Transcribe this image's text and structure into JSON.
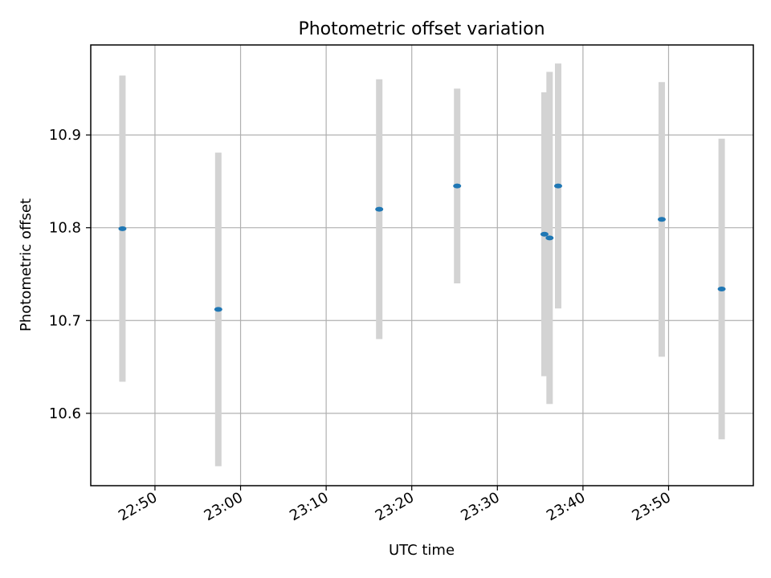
{
  "chart_data": {
    "type": "scatter",
    "title": "Photometric offset variation",
    "xlabel": "UTC time",
    "ylabel": "Photometric offset",
    "x_ticks": [
      "22:50",
      "23:00",
      "23:10",
      "23:20",
      "23:30",
      "23:40",
      "23:50"
    ],
    "y_ticks": [
      "10.6",
      "10.7",
      "10.8",
      "10.9"
    ],
    "xlim": [
      "22:42.5",
      "23:59.9"
    ],
    "ylim": [
      10.522,
      10.997
    ],
    "grid": true,
    "series": [
      {
        "marker_color": "#1f77b4",
        "errorbar_color": "#d3d3d3",
        "points": [
          {
            "x": "22:46.2",
            "y": 10.799,
            "err": 0.165
          },
          {
            "x": "22:57.4",
            "y": 10.712,
            "err": 0.169
          },
          {
            "x": "23:16.2",
            "y": 10.82,
            "err": 0.14
          },
          {
            "x": "23:25.3",
            "y": 10.845,
            "err": 0.105
          },
          {
            "x": "23:35.5",
            "y": 10.793,
            "err": 0.153
          },
          {
            "x": "23:36.1",
            "y": 10.789,
            "err": 0.179
          },
          {
            "x": "23:37.1",
            "y": 10.845,
            "err": 0.132
          },
          {
            "x": "23:49.2",
            "y": 10.809,
            "err": 0.148
          },
          {
            "x": "23:56.2",
            "y": 10.734,
            "err": 0.162
          }
        ]
      }
    ]
  }
}
